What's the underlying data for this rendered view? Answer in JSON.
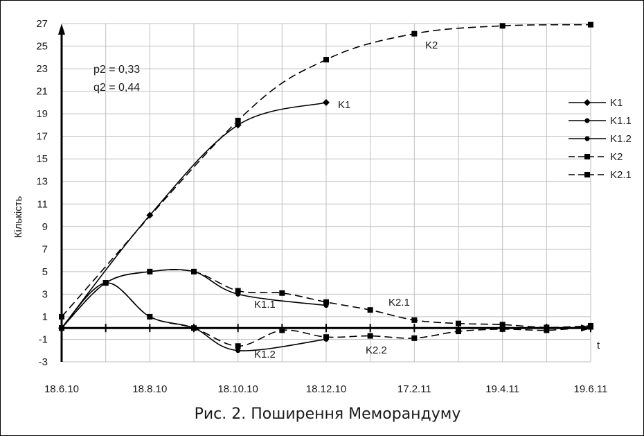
{
  "chart_data": {
    "type": "line",
    "title": "",
    "caption": "Рис. 2. Поширення Меморандуму",
    "xlabel": "t",
    "ylabel": "Кількість",
    "ylim": [
      -3,
      27
    ],
    "yticks": [
      -3,
      -1,
      1,
      3,
      5,
      7,
      9,
      11,
      13,
      15,
      17,
      19,
      21,
      23,
      25,
      27
    ],
    "xlim": [
      0,
      12
    ],
    "x_tick_labels": [
      {
        "x": 0,
        "label": "18.6.10"
      },
      {
        "x": 2,
        "label": "18.8.10"
      },
      {
        "x": 4,
        "label": "18.10.10"
      },
      {
        "x": 6,
        "label": "18.12.10"
      },
      {
        "x": 8,
        "label": "17.2.11"
      },
      {
        "x": 10,
        "label": "19.4.11"
      },
      {
        "x": 12,
        "label": "19.6.11"
      }
    ],
    "grid": true,
    "legend_position": "right",
    "annotations": [
      "p2 = 0,33",
      "q2 = 0,44"
    ],
    "series": [
      {
        "name": "K1",
        "label": "K1",
        "marker": "diamond",
        "dashed": false,
        "points": [
          [
            0,
            0
          ],
          [
            2,
            10
          ],
          [
            4,
            18
          ],
          [
            6,
            20
          ]
        ]
      },
      {
        "name": "K1.1",
        "label": "K1.1",
        "marker": "circle",
        "dashed": false,
        "points": [
          [
            0,
            0
          ],
          [
            1,
            4
          ],
          [
            2,
            5
          ],
          [
            3,
            5
          ],
          [
            4,
            3
          ],
          [
            6,
            2
          ]
        ]
      },
      {
        "name": "K1.2",
        "label": "K1.2",
        "marker": "circle",
        "dashed": false,
        "points": [
          [
            0,
            0
          ],
          [
            1,
            4
          ],
          [
            2,
            1
          ],
          [
            3,
            0
          ],
          [
            4,
            -2
          ],
          [
            6,
            -1
          ]
        ]
      },
      {
        "name": "K2",
        "label": "K2",
        "marker": "square",
        "dashed": true,
        "points": [
          [
            0,
            1
          ],
          [
            4,
            18.4
          ],
          [
            6,
            23.8
          ],
          [
            8,
            26.1
          ],
          [
            10,
            26.8
          ],
          [
            12,
            26.9
          ]
        ]
      },
      {
        "name": "K2.1",
        "label": "K2.1",
        "marker": "square",
        "dashed": true,
        "points": [
          [
            0,
            0
          ],
          [
            1,
            4
          ],
          [
            2,
            5
          ],
          [
            3,
            5
          ],
          [
            4,
            3.3
          ],
          [
            5,
            3.1
          ],
          [
            6,
            2.3
          ],
          [
            7,
            1.6
          ],
          [
            8,
            0.7
          ],
          [
            9,
            0.4
          ],
          [
            10,
            0.3
          ],
          [
            11,
            0.05
          ],
          [
            12,
            0.2
          ]
        ]
      },
      {
        "name": "K2.2",
        "label": "K2.2",
        "marker": "square",
        "dashed": true,
        "in_legend": false,
        "points": [
          [
            0,
            0
          ],
          [
            1,
            4
          ],
          [
            2,
            1
          ],
          [
            3,
            0
          ],
          [
            4,
            -1.6
          ],
          [
            5,
            -0.2
          ],
          [
            6,
            -0.8
          ],
          [
            7,
            -0.7
          ],
          [
            8,
            -0.9
          ],
          [
            9,
            -0.3
          ],
          [
            10,
            -0.1
          ],
          [
            11,
            -0.2
          ],
          [
            12,
            0.1
          ]
        ]
      }
    ]
  }
}
